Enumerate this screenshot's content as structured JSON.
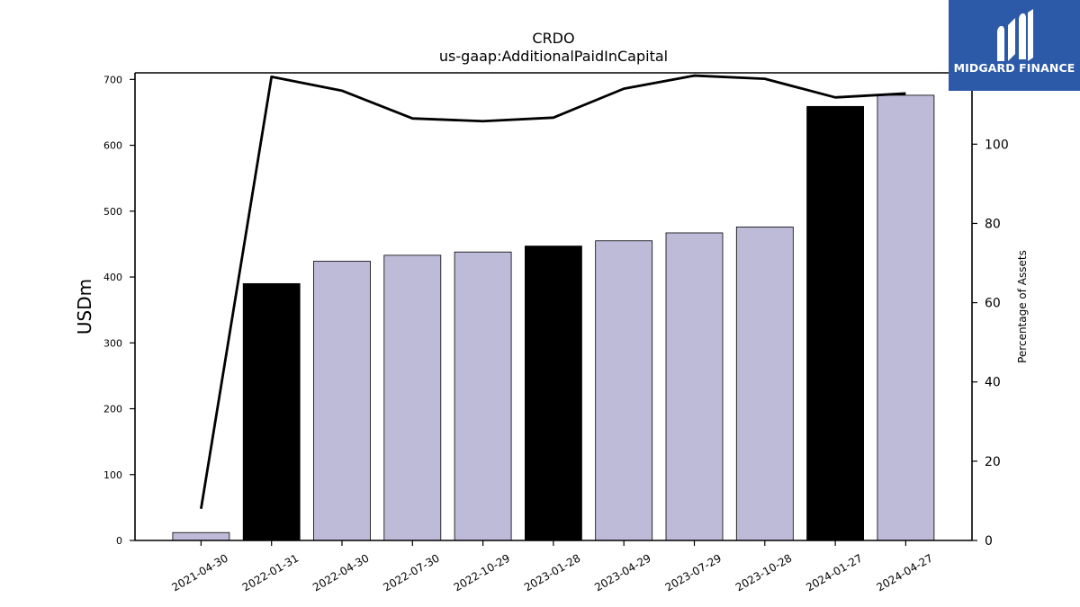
{
  "logo": {
    "text": "MIDGARD FINANCE",
    "background": "#2c5aa8"
  },
  "chart_data": {
    "type": "bar",
    "title": "CRDO",
    "subtitle": "us-gaap:AdditionalPaidInCapital",
    "ylabel": "USDm",
    "y2label": "Percentage of Assets",
    "xlabel": "",
    "categories": [
      "2021-04-30",
      "2022-01-31",
      "2022-04-30",
      "2022-07-30",
      "2022-10-29",
      "2023-01-28",
      "2023-04-29",
      "2023-07-29",
      "2023-10-28",
      "2024-01-27",
      "2024-04-27"
    ],
    "ylim": [
      0,
      710
    ],
    "y2lim": [
      0,
      118
    ],
    "yticks": [
      0,
      100,
      200,
      300,
      400,
      500,
      600,
      700
    ],
    "y2ticks": [
      0,
      20,
      40,
      60,
      80,
      100
    ],
    "series": [
      {
        "kind": "bar",
        "axis": "left",
        "values": [
          12,
          390,
          424,
          433,
          438,
          447,
          455,
          467,
          476,
          659,
          676
        ],
        "colors": [
          "#bebbd9",
          "#000000",
          "#bebbd9",
          "#bebbd9",
          "#bebbd9",
          "#000000",
          "#bebbd9",
          "#bebbd9",
          "#bebbd9",
          "#000000",
          "#bebbd9"
        ]
      },
      {
        "kind": "line",
        "axis": "right",
        "color": "#000000",
        "values": [
          8,
          117,
          113.5,
          106.5,
          105.8,
          106.7,
          114,
          117.3,
          116.5,
          111.8,
          112.8
        ]
      }
    ],
    "grid": false,
    "legend": "none"
  }
}
